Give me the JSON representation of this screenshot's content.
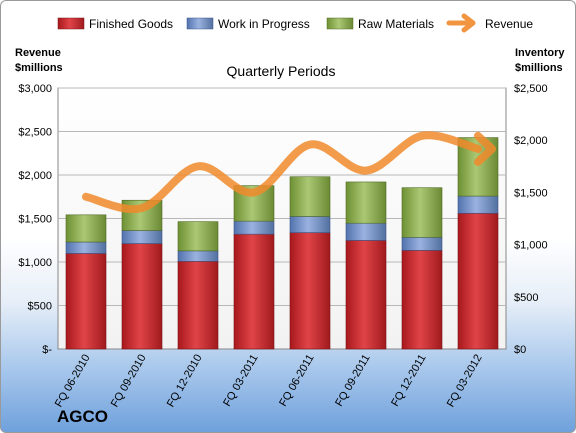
{
  "company": "AGCO",
  "chart_data": {
    "type": "bar",
    "subtitle": "Quarterly Periods",
    "categories": [
      "FQ 06-2010",
      "FQ 09-2010",
      "FQ 12-2010",
      "FQ 03-2011",
      "FQ 06-2011",
      "FQ 09-2011",
      "FQ 12-2011",
      "FQ 03-2012"
    ],
    "left_axis": {
      "label": [
        "Revenue",
        "$millions"
      ],
      "min": 0,
      "max": 3000,
      "step": 500,
      "tick_labels": [
        "$-",
        "$500",
        "$1,000",
        "$1,500",
        "$2,000",
        "$2,500",
        "$3,000"
      ]
    },
    "right_axis": {
      "label": [
        "Inventory",
        "$millions"
      ],
      "min": 0,
      "max": 2500,
      "step": 500,
      "tick_labels": [
        "$0",
        "$500",
        "$1,000",
        "$1,500",
        "$2,000",
        "$2,500"
      ]
    },
    "series": [
      {
        "name": "Finished Goods",
        "type": "bar",
        "axis": "right",
        "color": "#c0282b",
        "values": [
          915,
          1010,
          840,
          1100,
          1115,
          1040,
          945,
          1300
        ]
      },
      {
        "name": "Work in Progress",
        "type": "bar",
        "axis": "right",
        "color": "#6f8fc8",
        "values": [
          110,
          125,
          100,
          125,
          155,
          165,
          125,
          165
        ]
      },
      {
        "name": "Raw Materials",
        "type": "bar",
        "axis": "right",
        "color": "#8db04a",
        "values": [
          260,
          290,
          280,
          340,
          380,
          395,
          475,
          560
        ]
      },
      {
        "name": "Revenue",
        "type": "line",
        "axis": "left",
        "color": "#f08a2c",
        "values": [
          1750,
          1620,
          2100,
          1800,
          2350,
          2050,
          2450,
          2300
        ]
      }
    ],
    "grid": true,
    "legend": "top"
  }
}
